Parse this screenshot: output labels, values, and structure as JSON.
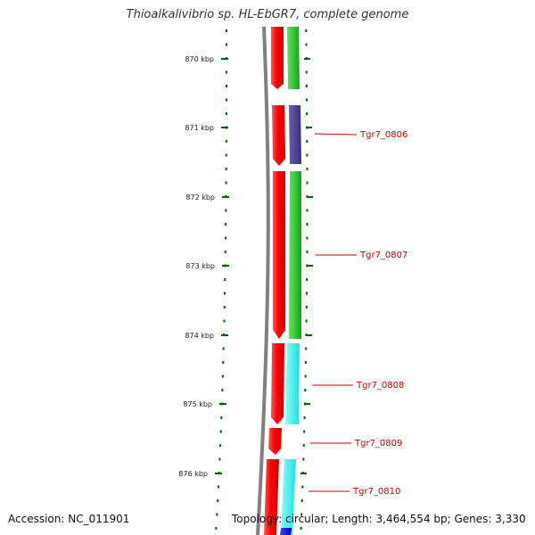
{
  "title": "Thioalkalivibrio sp. HL-EbGR7, complete genome",
  "ticks": [
    {
      "label": "870 kbp",
      "kbp": 870
    },
    {
      "label": "871 kbp",
      "kbp": 871
    },
    {
      "label": "872 kbp",
      "kbp": 872
    },
    {
      "label": "873 kbp",
      "kbp": 873
    },
    {
      "label": "874 kbp",
      "kbp": 874
    },
    {
      "label": "875 kbp",
      "kbp": 875
    },
    {
      "label": "876 kbp",
      "kbp": 876
    }
  ],
  "gene_labels": [
    {
      "name": "Tgr7_0806",
      "color": "#cc0000"
    },
    {
      "name": "Tgr7_0807",
      "color": "#cc0000"
    },
    {
      "name": "Tgr7_0808",
      "color": "#cc0000"
    },
    {
      "name": "Tgr7_0809",
      "color": "#cc0000"
    },
    {
      "name": "Tgr7_0810",
      "color": "#cc0000"
    }
  ],
  "colors": {
    "backbone": "#808080",
    "red_track": "#ff0000",
    "green_feature": "#33cc33",
    "purple_feature": "#4b3d8f",
    "cyan_feature": "#33ffff",
    "blue_feature": "#0000ff",
    "tick": "#006600"
  },
  "footer": {
    "accession": "Accession: NC_011901",
    "topology": "Topology: circular; Length: 3,464,554 bp; Genes: 3,330"
  }
}
